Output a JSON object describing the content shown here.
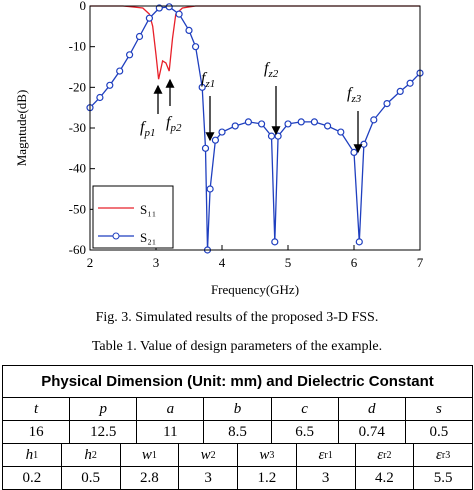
{
  "chart_data": {
    "type": "line",
    "x_label": "Frequency(GHz)",
    "y_label": "Magntude(dB)",
    "xlim": [
      2,
      7
    ],
    "xticks": [
      2,
      3,
      4,
      5,
      6,
      7
    ],
    "ylim": [
      -60,
      0
    ],
    "yticks": [
      -60,
      -50,
      -40,
      -30,
      -20,
      -10,
      0
    ],
    "series": [
      {
        "name": "S₁₁",
        "color": "#e8202a",
        "marker": false,
        "x": [
          2,
          2.5,
          2.8,
          2.9,
          2.95,
          3.0,
          3.04,
          3.1,
          3.15,
          3.2,
          3.25,
          3.3,
          3.4,
          3.6,
          4,
          5,
          6,
          7
        ],
        "values": [
          0,
          0,
          -0.5,
          -2,
          -5,
          -12,
          -18,
          -13.5,
          -14,
          -16,
          -8,
          -2,
          -0.5,
          0,
          0,
          0,
          0,
          0
        ]
      },
      {
        "name": "S₂₁",
        "color": "#1f3fbf",
        "marker": true,
        "x": [
          2.0,
          2.15,
          2.3,
          2.45,
          2.6,
          2.75,
          2.9,
          3.05,
          3.2,
          3.35,
          3.5,
          3.6,
          3.7,
          3.75,
          3.78,
          3.82,
          3.9,
          4.0,
          4.2,
          4.4,
          4.6,
          4.75,
          4.8,
          4.85,
          5.0,
          5.2,
          5.4,
          5.6,
          5.8,
          6.0,
          6.08,
          6.15,
          6.3,
          6.5,
          6.7,
          6.85,
          7.0
        ],
        "values": [
          -25,
          -22.5,
          -19.5,
          -16,
          -12,
          -7.5,
          -3,
          -0.5,
          -0.2,
          -2,
          -6,
          -10,
          -20,
          -35,
          -60,
          -45,
          -33,
          -31,
          -29.5,
          -28.5,
          -29,
          -32,
          -58,
          -32,
          -29,
          -28.5,
          -28.5,
          -29.5,
          -31,
          -36,
          -58,
          -34,
          -28,
          -24,
          -21,
          -19,
          -16.5
        ]
      }
    ],
    "annotations": [
      {
        "base": "f",
        "sub": "p1"
      },
      {
        "base": "f",
        "sub": "p2"
      },
      {
        "base": "f",
        "sub": "z1"
      },
      {
        "base": "f",
        "sub": "z2"
      },
      {
        "base": "f",
        "sub": "z3"
      }
    ]
  },
  "figure_caption": "Fig. 3.  Simulated results of the proposed 3-D FSS.",
  "table_caption": "Table 1.  Value of design parameters of the example.",
  "table": {
    "header": "Physical Dimension (Unit: mm) and Dielectric Constant",
    "rows": [
      [
        {
          "base": "t"
        },
        {
          "base": "p"
        },
        {
          "base": "a"
        },
        {
          "base": "b"
        },
        {
          "base": "c"
        },
        {
          "base": "d"
        },
        {
          "base": "s"
        }
      ],
      [
        "16",
        "12.5",
        "11",
        "8.5",
        "6.5",
        "0.74",
        "0.5"
      ],
      [
        {
          "base": "h",
          "sub": "1"
        },
        {
          "base": "h",
          "sub": "2"
        },
        {
          "base": "w",
          "sub": "1"
        },
        {
          "base": "w",
          "sub": "2"
        },
        {
          "base": "w",
          "sub": "3"
        },
        {
          "base": "ε",
          "sub": "r1"
        },
        {
          "base": "ε",
          "sub": "r2"
        },
        {
          "base": "ε",
          "sub": "r3"
        }
      ],
      [
        "0.2",
        "0.5",
        "2.8",
        "3",
        "1.2",
        "3",
        "4.2",
        "5.5"
      ]
    ]
  }
}
